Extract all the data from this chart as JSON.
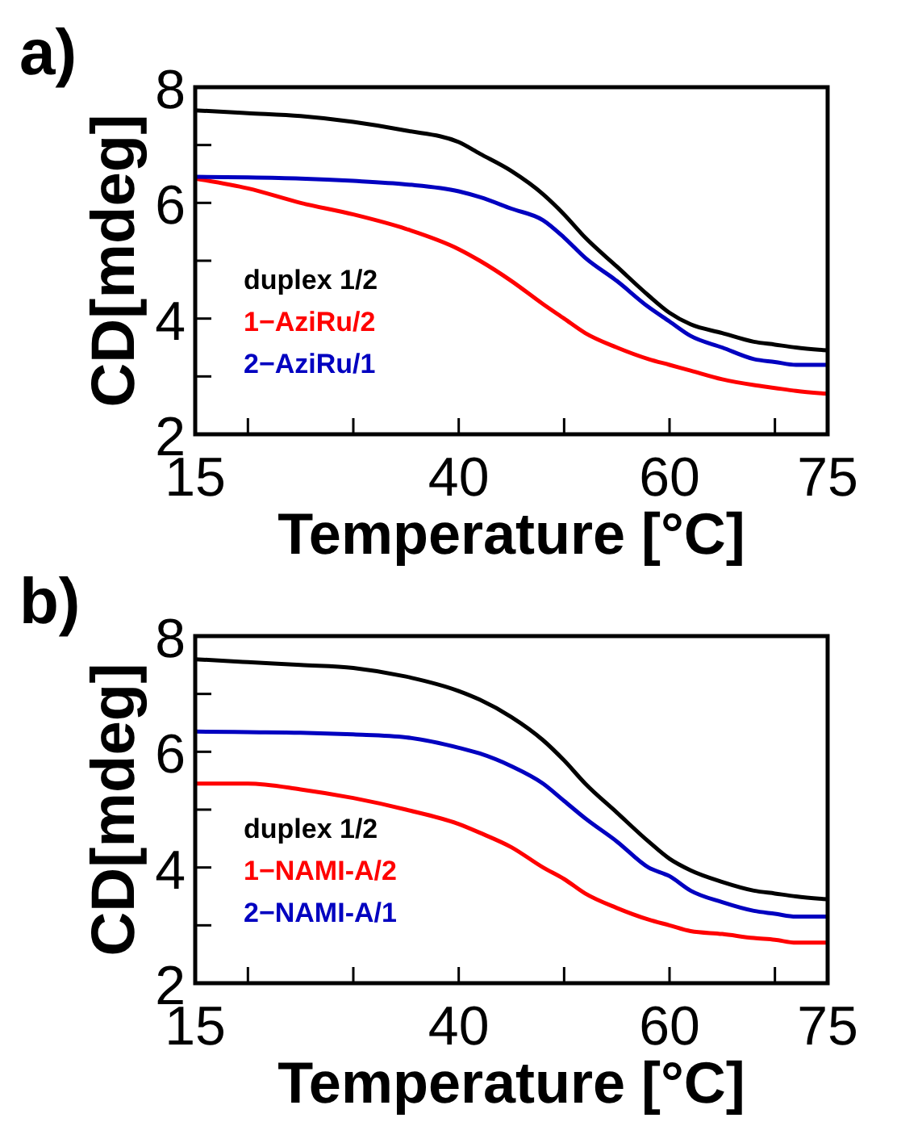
{
  "chart_data": [
    {
      "type": "line",
      "title": "a)",
      "xlabel": "Temperature [°C]",
      "ylabel": "CD[mdeg]",
      "xlim": [
        15,
        75
      ],
      "ylim": [
        2,
        8
      ],
      "xticks": [
        15,
        {
          "value": 20,
          "label": null
        },
        {
          "value": 30,
          "label": null
        },
        40,
        {
          "value": 50,
          "label": null
        },
        60,
        {
          "value": 70,
          "label": null
        },
        75
      ],
      "yticks": [
        2,
        {
          "value": 3,
          "label": null
        },
        4,
        {
          "value": 5,
          "label": null
        },
        6,
        {
          "value": 7,
          "label": null
        },
        8
      ],
      "x": [
        15,
        20,
        25,
        30,
        35,
        40,
        42,
        45,
        48,
        50,
        52,
        55,
        58,
        60,
        62,
        65,
        68,
        70,
        72,
        75
      ],
      "legend": "bottom left",
      "marker": "none",
      "line_style": "solid",
      "grid": false,
      "series": [
        {
          "name": "duplex 1/2",
          "color": "#000000",
          "values": [
            7.6,
            7.55,
            7.5,
            7.4,
            7.25,
            7.05,
            6.85,
            6.55,
            6.15,
            5.8,
            5.4,
            4.9,
            4.4,
            4.1,
            3.9,
            3.75,
            3.6,
            3.55,
            3.5,
            3.45
          ]
        },
        {
          "name": "1−AziRu/2",
          "color": "#ff0000",
          "values": [
            6.42,
            6.25,
            6.0,
            5.8,
            5.55,
            5.2,
            5.0,
            4.65,
            4.25,
            4.0,
            3.75,
            3.5,
            3.3,
            3.2,
            3.1,
            2.95,
            2.85,
            2.8,
            2.75,
            2.7
          ]
        },
        {
          "name": "2−AziRu/1",
          "color": "#0000c0",
          "values": [
            6.45,
            6.44,
            6.42,
            6.38,
            6.32,
            6.2,
            6.1,
            5.9,
            5.7,
            5.4,
            5.05,
            4.65,
            4.2,
            3.95,
            3.7,
            3.5,
            3.3,
            3.25,
            3.2,
            3.2
          ]
        }
      ]
    },
    {
      "type": "line",
      "title": "b)",
      "xlabel": "Temperature [°C]",
      "ylabel": "CD[mdeg]",
      "xlim": [
        15,
        75
      ],
      "ylim": [
        2,
        8
      ],
      "xticks": [
        15,
        {
          "value": 20,
          "label": null
        },
        {
          "value": 30,
          "label": null
        },
        40,
        {
          "value": 50,
          "label": null
        },
        60,
        {
          "value": 70,
          "label": null
        },
        75
      ],
      "yticks": [
        2,
        {
          "value": 3,
          "label": null
        },
        4,
        {
          "value": 5,
          "label": null
        },
        6,
        {
          "value": 7,
          "label": null
        },
        8
      ],
      "x": [
        15,
        20,
        25,
        30,
        35,
        40,
        42,
        45,
        48,
        50,
        52,
        55,
        58,
        60,
        62,
        65,
        68,
        70,
        72,
        75
      ],
      "legend": "bottom left",
      "marker": "none",
      "line_style": "solid",
      "grid": false,
      "series": [
        {
          "name": "duplex 1/2",
          "color": "#000000",
          "values": [
            7.6,
            7.55,
            7.5,
            7.45,
            7.3,
            7.05,
            6.9,
            6.6,
            6.2,
            5.85,
            5.45,
            4.95,
            4.45,
            4.15,
            3.95,
            3.75,
            3.6,
            3.55,
            3.5,
            3.45
          ]
        },
        {
          "name": "1−NAMI-A/2",
          "color": "#ff0000",
          "values": [
            5.45,
            5.45,
            5.35,
            5.2,
            5.0,
            4.75,
            4.6,
            4.35,
            4.0,
            3.8,
            3.55,
            3.3,
            3.1,
            3.0,
            2.9,
            2.85,
            2.78,
            2.75,
            2.7,
            2.7
          ]
        },
        {
          "name": "2−NAMI-A/1",
          "color": "#0000c0",
          "values": [
            6.35,
            6.34,
            6.33,
            6.3,
            6.25,
            6.07,
            5.97,
            5.75,
            5.45,
            5.15,
            4.85,
            4.45,
            4.0,
            3.85,
            3.6,
            3.4,
            3.25,
            3.2,
            3.15,
            3.15
          ]
        }
      ]
    }
  ]
}
